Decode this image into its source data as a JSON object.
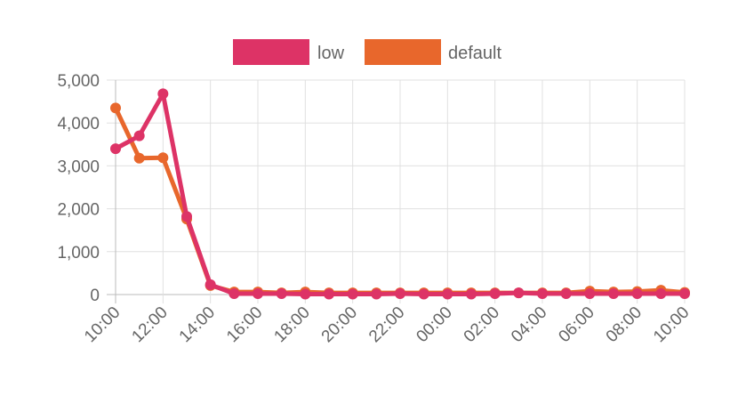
{
  "chart_data": {
    "type": "line",
    "x": [
      "10:00",
      "11:00",
      "12:00",
      "13:00",
      "14:00",
      "15:00",
      "16:00",
      "17:00",
      "18:00",
      "19:00",
      "20:00",
      "21:00",
      "22:00",
      "23:00",
      "00:00",
      "01:00",
      "02:00",
      "03:00",
      "04:00",
      "05:00",
      "06:00",
      "07:00",
      "08:00",
      "09:00",
      "10:00"
    ],
    "x_tick_labels": [
      "10:00",
      "12:00",
      "14:00",
      "16:00",
      "18:00",
      "20:00",
      "22:00",
      "00:00",
      "02:00",
      "04:00",
      "06:00",
      "08:00",
      "10:00"
    ],
    "y_tick_labels": [
      "5,000",
      "4,000",
      "3,000",
      "2,000",
      "1,000",
      "0"
    ],
    "ylim": [
      0,
      5000
    ],
    "grid": true,
    "legend": "top",
    "series": [
      {
        "name": "low",
        "color": "#dd3366",
        "values": [
          3400,
          3700,
          4680,
          1820,
          230,
          20,
          20,
          20,
          10,
          10,
          10,
          10,
          20,
          10,
          10,
          10,
          20,
          40,
          20,
          20,
          20,
          20,
          20,
          20,
          20
        ]
      },
      {
        "name": "default",
        "color": "#e8672c",
        "values": [
          4350,
          3180,
          3190,
          1760,
          210,
          60,
          60,
          40,
          60,
          40,
          40,
          40,
          40,
          40,
          40,
          40,
          40,
          40,
          40,
          40,
          80,
          60,
          70,
          100,
          50
        ]
      }
    ]
  }
}
